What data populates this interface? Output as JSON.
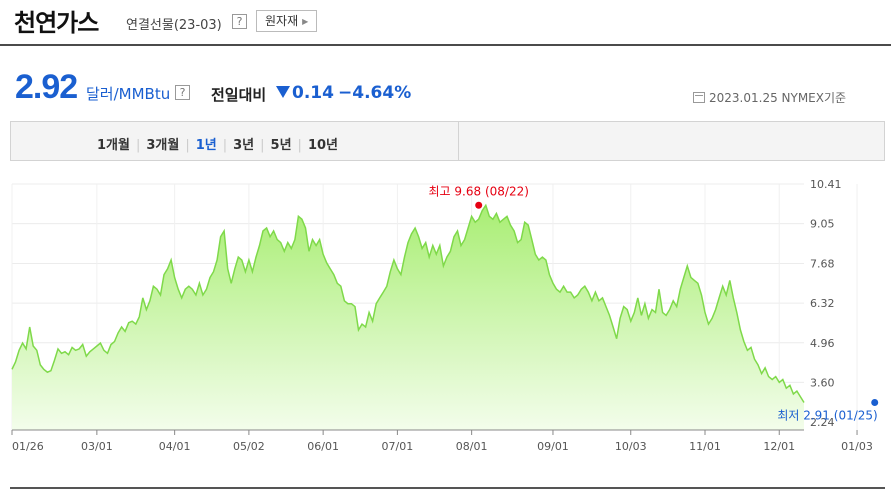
{
  "header": {
    "title": "천연가스",
    "subtitle": "연결선물(23-03)",
    "help": "?",
    "raw_button": "원자재",
    "raw_arrow": "▶"
  },
  "quote": {
    "price": "2.92",
    "unit": "달러/MMBtu",
    "help": "?",
    "prev_label": "전일대비",
    "change": "0.14",
    "change_pct": "−4.64%",
    "date_info": "2023.01.25 NYMEX기준"
  },
  "periods": {
    "items": [
      "1개월",
      "3개월",
      "1년",
      "3년",
      "5년",
      "10년"
    ],
    "active": "1년"
  },
  "colors": {
    "accent": "#1a5fd0",
    "high": "#e60012",
    "line": "#7fd94a",
    "fill_top": "#a9ee74",
    "fill_bottom": "#f3fdeb"
  },
  "chart_data": {
    "type": "area",
    "ylim": [
      2.24,
      10.41
    ],
    "yticks": [
      "10.41",
      "9.05",
      "7.68",
      "6.32",
      "4.96",
      "3.60",
      "2.24"
    ],
    "yticks_values": [
      10.41,
      9.05,
      7.68,
      6.32,
      4.96,
      3.6,
      2.24
    ],
    "xticks": [
      "01/26",
      "03/01",
      "04/01",
      "05/02",
      "06/01",
      "07/01",
      "08/01",
      "09/01",
      "10/03",
      "11/01",
      "12/01",
      "01/03"
    ],
    "xticks_index": [
      0,
      24,
      46,
      67,
      88,
      109,
      130,
      153,
      175,
      196,
      217,
      239
    ],
    "values": [
      4.05,
      4.3,
      4.7,
      4.95,
      4.75,
      5.5,
      4.85,
      4.7,
      4.2,
      4.05,
      3.95,
      4.0,
      4.35,
      4.75,
      4.6,
      4.65,
      4.55,
      4.8,
      4.7,
      4.75,
      4.9,
      4.5,
      4.65,
      4.75,
      4.85,
      4.95,
      4.7,
      4.6,
      4.9,
      5.0,
      5.3,
      5.5,
      5.35,
      5.65,
      5.7,
      5.6,
      5.85,
      6.5,
      6.1,
      6.4,
      6.9,
      6.8,
      6.6,
      7.3,
      7.5,
      7.8,
      7.2,
      6.8,
      6.5,
      6.8,
      6.9,
      6.8,
      6.6,
      7.0,
      6.6,
      6.8,
      7.2,
      7.4,
      7.8,
      8.6,
      8.8,
      7.5,
      7.0,
      7.5,
      7.9,
      7.8,
      7.4,
      7.8,
      7.4,
      7.9,
      8.3,
      8.8,
      8.9,
      8.6,
      8.8,
      8.5,
      8.4,
      8.1,
      8.4,
      8.2,
      8.5,
      9.3,
      9.2,
      8.9,
      8.1,
      8.5,
      8.3,
      8.5,
      8.0,
      7.7,
      7.5,
      7.3,
      7.0,
      6.9,
      6.4,
      6.3,
      6.3,
      6.2,
      5.4,
      5.6,
      5.5,
      6.0,
      5.7,
      6.3,
      6.5,
      6.7,
      6.9,
      7.4,
      7.8,
      7.5,
      7.3,
      7.9,
      8.4,
      8.7,
      8.9,
      8.6,
      8.2,
      8.4,
      7.9,
      8.3,
      8.0,
      8.3,
      7.6,
      7.9,
      8.1,
      8.6,
      8.8,
      8.3,
      8.5,
      8.9,
      9.3,
      9.1,
      9.2,
      9.5,
      9.68,
      9.3,
      9.2,
      9.4,
      9.1,
      9.2,
      9.3,
      9.0,
      8.8,
      8.4,
      8.5,
      9.1,
      9.0,
      8.5,
      8.0,
      7.8,
      7.9,
      7.8,
      7.3,
      7.0,
      6.8,
      6.7,
      6.9,
      6.7,
      6.7,
      6.5,
      6.6,
      6.8,
      6.9,
      6.7,
      6.4,
      6.7,
      6.4,
      6.5,
      6.2,
      5.9,
      5.5,
      5.1,
      5.8,
      6.2,
      6.1,
      5.7,
      6.0,
      6.5,
      5.9,
      6.3,
      5.8,
      6.1,
      6.0,
      6.8,
      6.0,
      5.9,
      6.1,
      6.4,
      6.2,
      6.8,
      7.2,
      7.6,
      7.2,
      7.1,
      7.0,
      6.6,
      6.0,
      5.6,
      5.8,
      6.1,
      6.5,
      6.9,
      6.6,
      7.1,
      6.5,
      6.0,
      5.4,
      5.0,
      4.7,
      4.8,
      4.4,
      4.2,
      3.9,
      4.1,
      3.8,
      3.7,
      3.8,
      3.6,
      3.7,
      3.4,
      3.5,
      3.2,
      3.3,
      3.1,
      2.91
    ],
    "high": {
      "label": "최고 9.68 (08/22)",
      "value": 9.68,
      "index": 132
    },
    "low": {
      "label": "최저 2.91 (01/25)",
      "value": 2.91,
      "index": 244
    }
  }
}
